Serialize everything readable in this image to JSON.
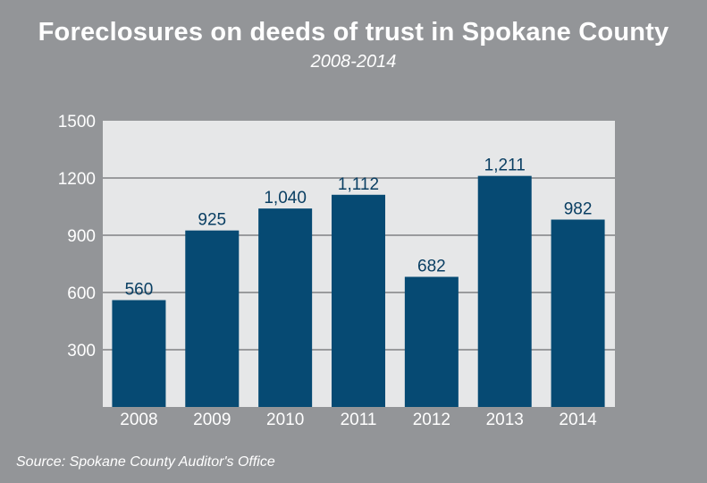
{
  "chart_data": {
    "type": "bar",
    "title": "Foreclosures on deeds of trust in Spokane County",
    "subtitle": "2008-2014",
    "categories": [
      "2008",
      "2009",
      "2010",
      "2011",
      "2012",
      "2013",
      "2014"
    ],
    "values": [
      560,
      925,
      1040,
      1112,
      682,
      1211,
      982
    ],
    "data_labels": [
      "560",
      "925",
      "1,040",
      "1,112",
      "682",
      "1,211",
      "982"
    ],
    "xlabel": "",
    "ylabel": "",
    "ylim": [
      0,
      1500
    ],
    "yticks": [
      300,
      600,
      900,
      1200,
      1500
    ],
    "ytick_labels": [
      "300",
      "600",
      "900",
      "1200",
      "1500"
    ],
    "grid": true,
    "source": "Source: Spokane County Auditor's Office",
    "colors": {
      "bar": "#064a73",
      "plot_bg": "#e6e7e8",
      "background": "#939598",
      "grid": "#9a9b9d"
    }
  }
}
